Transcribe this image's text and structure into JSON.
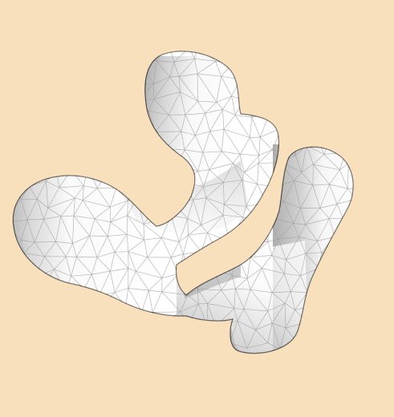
{
  "scene": {
    "background_color": "#F9E0BD",
    "surface_color": "#FFFFFF",
    "shade_color": "#1A1A1A",
    "wire_color": "#111111",
    "render_style": "shaded triangle mesh with wireframe edges"
  }
}
